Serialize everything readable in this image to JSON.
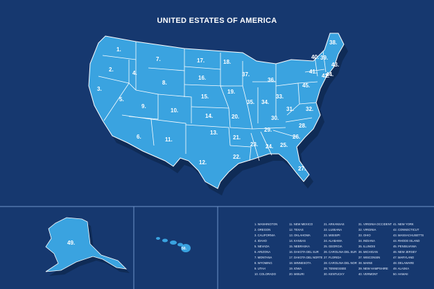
{
  "title": "UNITED ESTATES OF AMERICA",
  "colors": {
    "background": "#16386f",
    "land": "#3aa3e0",
    "shadow": "#0f2b56",
    "border": "#ffffff"
  },
  "state_labels": [
    "1.",
    "2.",
    "3.",
    "4.",
    "5.",
    "6.",
    "7.",
    "8.",
    "9.",
    "10.",
    "11.",
    "12.",
    "13.",
    "14.",
    "15.",
    "16.",
    "17.",
    "18.",
    "19.",
    "20.",
    "21.",
    "22.",
    "23.",
    "24.",
    "25.",
    "26.",
    "27.",
    "28.",
    "29.",
    "30.",
    "31.",
    "32.",
    "33.",
    "34.",
    "35.",
    "36.",
    "37.",
    "38.",
    "39.",
    "40.",
    "41.",
    "42.",
    "43.",
    "44.",
    "45.",
    "49.",
    "50."
  ],
  "legend": [
    "1. WASHINGTON",
    "2. OREGON",
    "3. CALIFORNIA",
    "4. IDAHO",
    "5. NEVADA",
    "6. ARIZONA",
    "7. MONTANA",
    "8. WYOMING",
    "9. UTAH",
    "10. COLORADO",
    "11. NEW MEXICO",
    "12. TEXAS",
    "13. OKLAHOMA",
    "14. KANSAS",
    "15. NEBRASKA",
    "16. DAKOTA DEL SUR",
    "17. DAKOTA DEL NORTE",
    "18. MINNESOTA",
    "19. IOWA",
    "20. MISURI",
    "21. ARKANSAS",
    "22. LUISIANA",
    "23. MISISIPI",
    "24. ALABAMA",
    "25. GEORGIA",
    "26. CAROLINA DEL SUR",
    "27. FLORIDA",
    "28. CAROLINA DEL NORTE",
    "29. TENNESSEE",
    "30. KENTUCKY",
    "31. VIRGINIA OCCIDENTAL",
    "32. VIRGINIA",
    "33. OHIO",
    "34. INDIANA",
    "35. ILLINOIS",
    "36. MICHIGAN",
    "37. WISCONSIN",
    "38. MAINE",
    "39. NEW HAMPSHIRE",
    "40. VERMONT",
    "41. NEW YORK",
    "42. CONNECTICUT",
    "43. MASSACHUSETTS",
    "44. RHODE ISLAND",
    "45. PENSILVANIA",
    "46. NEW JERSEY",
    "47. MARYLAND",
    "48. DELAWARE",
    "49. ALASKA",
    "50. HAWAII"
  ]
}
